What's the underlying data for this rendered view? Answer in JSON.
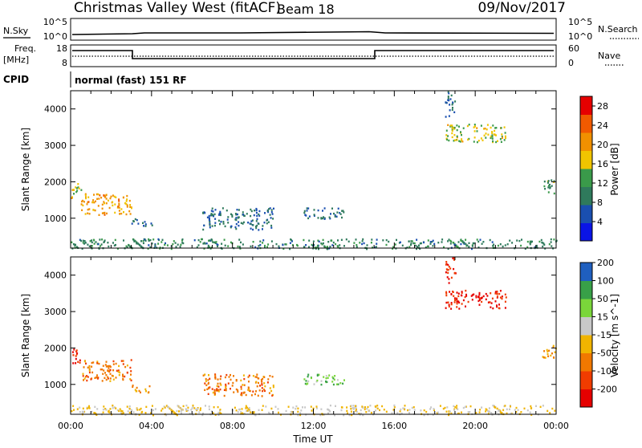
{
  "header": {
    "station": "Christmas Valley West (fitACF)",
    "beam": "Beam 18",
    "date": "09/Nov/2017"
  },
  "nsky_panel": {
    "label": "N.Sky",
    "tick_top": "10^5",
    "tick_bottom": "10^0",
    "right_tick_top": "10^5",
    "right_tick_bottom": "10^0",
    "right_label": "N.Search"
  },
  "freq_panel": {
    "label_line1": "Freq.",
    "label_line2": "[MHz]",
    "tick_top": "18",
    "tick_bottom": "8",
    "right_tick_top": "60",
    "right_tick_bottom": "0",
    "right_label": "Nave"
  },
  "cpid": {
    "label": "CPID",
    "value": "normal (fast) 151 RF"
  },
  "colors": {
    "power_scale": [
      "#0a14e6",
      "#1a4fb0",
      "#2f7a5c",
      "#3a9a4a",
      "#f0c400",
      "#f09000",
      "#f05a00",
      "#e60000"
    ],
    "velocity_scale": [
      "#e60000",
      "#f03c00",
      "#f07800",
      "#f0b400",
      "#c8c8c8",
      "#7ad63a",
      "#38a048",
      "#1f5fbf"
    ]
  },
  "chart_data": [
    {
      "type": "heatmap",
      "title": "",
      "xlabel": "",
      "ylabel": "Slant Range [km]",
      "xlim": [
        "00:00",
        "00:00"
      ],
      "ylim": [
        180,
        4500
      ],
      "y_ticks": [
        "1000",
        "2000",
        "3000",
        "4000"
      ],
      "colorbar": {
        "label": "Power [dB]",
        "ticks": [
          "4",
          "8",
          "12",
          "16",
          "20",
          "24",
          "28"
        ],
        "range": [
          0,
          30
        ]
      },
      "echo_regions": [
        {
          "t0": 0.0,
          "t1": 0.5,
          "r0": 1550,
          "r1": 2000,
          "value": 16
        },
        {
          "t0": 0.5,
          "t1": 3.0,
          "r0": 1100,
          "r1": 1700,
          "value": 20
        },
        {
          "t0": 3.0,
          "t1": 4.0,
          "r0": 800,
          "r1": 1000,
          "value": 8
        },
        {
          "t0": 6.5,
          "t1": 10.0,
          "r0": 700,
          "r1": 1300,
          "value": 8
        },
        {
          "t0": 11.5,
          "t1": 13.5,
          "r0": 1000,
          "r1": 1300,
          "value": 8
        },
        {
          "t0": 18.5,
          "t1": 21.5,
          "r0": 3100,
          "r1": 3600,
          "value": 16
        },
        {
          "t0": 18.5,
          "t1": 19.0,
          "r0": 3800,
          "r1": 4500,
          "value": 8
        },
        {
          "t0": 23.3,
          "t1": 24.0,
          "r0": 1700,
          "r1": 2100,
          "value": 12
        },
        {
          "t0": 0.0,
          "t1": 24.0,
          "r0": 180,
          "r1": 450,
          "value": 10
        }
      ]
    },
    {
      "type": "heatmap",
      "title": "",
      "xlabel": "Time UT",
      "ylabel": "Slant Range [km]",
      "xlim": [
        "00:00",
        "00:00"
      ],
      "ylim": [
        180,
        4500
      ],
      "x_ticks": [
        "00:00",
        "04:00",
        "08:00",
        "12:00",
        "16:00",
        "20:00",
        "00:00"
      ],
      "y_ticks": [
        "1000",
        "2000",
        "3000",
        "4000"
      ],
      "colorbar": {
        "label": "Velocity [m s^-1]",
        "ticks": [
          "-200",
          "-100",
          "-50",
          "-15",
          "15",
          "50",
          "100",
          "200"
        ],
        "range": [
          -250,
          250
        ]
      },
      "echo_regions": [
        {
          "t0": 0.0,
          "t1": 0.5,
          "r0": 1550,
          "r1": 2000,
          "value": -200
        },
        {
          "t0": 0.5,
          "t1": 3.0,
          "r0": 1100,
          "r1": 1700,
          "value": -100
        },
        {
          "t0": 3.0,
          "t1": 4.0,
          "r0": 800,
          "r1": 1000,
          "value": -50
        },
        {
          "t0": 6.5,
          "t1": 10.0,
          "r0": 700,
          "r1": 1300,
          "value": -100
        },
        {
          "t0": 11.5,
          "t1": 13.5,
          "r0": 1000,
          "r1": 1300,
          "value": 100
        },
        {
          "t0": 18.5,
          "t1": 21.5,
          "r0": 3100,
          "r1": 3600,
          "value": -200
        },
        {
          "t0": 18.5,
          "t1": 19.0,
          "r0": 3800,
          "r1": 4500,
          "value": -200
        },
        {
          "t0": 23.3,
          "t1": 24.0,
          "r0": 1700,
          "r1": 2100,
          "value": -50
        },
        {
          "t0": 0.0,
          "t1": 24.0,
          "r0": 180,
          "r1": 450,
          "value": 0
        }
      ]
    }
  ]
}
